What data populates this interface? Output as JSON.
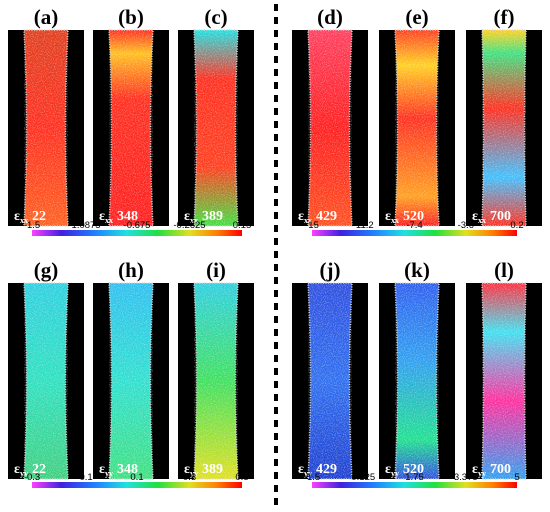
{
  "panels": [
    {
      "label": "(a)",
      "sub": "xx",
      "strain": "22"
    },
    {
      "label": "(b)",
      "sub": "xx",
      "strain": "348"
    },
    {
      "label": "(c)",
      "sub": "xx",
      "strain": "389"
    },
    {
      "label": "(d)",
      "sub": "xx",
      "strain": "429"
    },
    {
      "label": "(e)",
      "sub": "xx",
      "strain": "520"
    },
    {
      "label": "(f)",
      "sub": "xx",
      "strain": "700"
    },
    {
      "label": "(g)",
      "sub": "yy",
      "strain": "22"
    },
    {
      "label": "(h)",
      "sub": "yy",
      "strain": "348"
    },
    {
      "label": "(i)",
      "sub": "yy",
      "strain": "389"
    },
    {
      "label": "(j)",
      "sub": "yy",
      "strain": "429"
    },
    {
      "label": "(k)",
      "sub": "yy",
      "strain": "520"
    },
    {
      "label": "(l)",
      "sub": "yy",
      "strain": "700"
    }
  ],
  "colorbars": [
    {
      "ticks": [
        "-1.5",
        "-1.0875",
        "-0.675",
        "-0.2625",
        "0.15"
      ]
    },
    {
      "ticks": [
        "-15",
        "-11.2",
        "-7.4",
        "-3.6",
        "0.2"
      ]
    },
    {
      "ticks": [
        "-0.3",
        "-0.1",
        "0.1",
        "0.3",
        "0.5"
      ]
    },
    {
      "ticks": [
        "-1.5",
        "0.125",
        "1.75",
        "3.375",
        "5"
      ]
    }
  ],
  "colormap": [
    "#ff40ff",
    "#4020e0",
    "#2080ff",
    "#20e0e0",
    "#20e040",
    "#e0e020",
    "#ff8000",
    "#ff0000"
  ]
}
